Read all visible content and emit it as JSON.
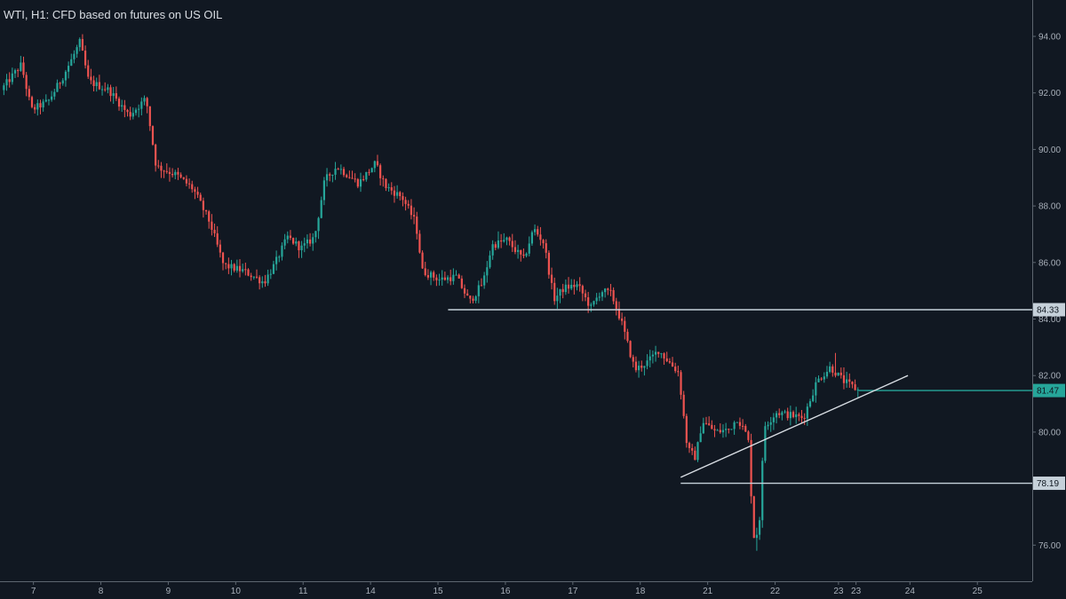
{
  "chart_data": {
    "type": "candlestick",
    "title": "WTI, H1: CFD based on futures on US OIL",
    "ylim": [
      74.8,
      94.8
    ],
    "xlim": [
      0,
      23.2
    ],
    "grid": false,
    "y_ticks": [
      "94.00",
      "92.00",
      "90.00",
      "88.00",
      "86.00",
      "84.00",
      "82.00",
      "80.00",
      "76.00"
    ],
    "y_tick_values": [
      94,
      92,
      90,
      88,
      86,
      84,
      82,
      80,
      76
    ],
    "x_ticks": [
      {
        "label": "7",
        "t": 0.48
      },
      {
        "label": "8",
        "t": 1.48
      },
      {
        "label": "9",
        "t": 2.48
      },
      {
        "label": "10",
        "t": 3.48
      },
      {
        "label": "11",
        "t": 4.48
      },
      {
        "label": "14",
        "t": 5.48
      },
      {
        "label": "15",
        "t": 6.48
      },
      {
        "label": "16",
        "t": 7.48
      },
      {
        "label": "17",
        "t": 8.48
      },
      {
        "label": "18",
        "t": 9.48
      },
      {
        "label": "21",
        "t": 10.48
      },
      {
        "label": "22",
        "t": 11.48
      },
      {
        "label": "23",
        "t": 12.42
      },
      {
        "label": "23",
        "t": 12.68
      },
      {
        "label": "24",
        "t": 13.48
      },
      {
        "label": "25",
        "t": 14.48
      }
    ],
    "price_path": [
      [
        0.0,
        92.1
      ],
      [
        0.3,
        93.0
      ],
      [
        0.45,
        91.4
      ],
      [
        0.7,
        91.7
      ],
      [
        0.9,
        92.5
      ],
      [
        1.05,
        93.2
      ],
      [
        1.17,
        93.8
      ],
      [
        1.3,
        92.4
      ],
      [
        1.6,
        92.1
      ],
      [
        1.9,
        91.2
      ],
      [
        2.15,
        91.8
      ],
      [
        2.3,
        89.4
      ],
      [
        2.6,
        89.1
      ],
      [
        2.85,
        88.6
      ],
      [
        3.1,
        87.4
      ],
      [
        3.3,
        85.9
      ],
      [
        3.6,
        85.7
      ],
      [
        3.9,
        85.3
      ],
      [
        4.05,
        85.9
      ],
      [
        4.25,
        86.9
      ],
      [
        4.45,
        86.5
      ],
      [
        4.65,
        86.9
      ],
      [
        4.8,
        88.9
      ],
      [
        4.98,
        89.4
      ],
      [
        5.3,
        88.8
      ],
      [
        5.55,
        89.5
      ],
      [
        5.7,
        88.7
      ],
      [
        5.95,
        88.3
      ],
      [
        6.15,
        87.4
      ],
      [
        6.25,
        85.7
      ],
      [
        6.5,
        85.4
      ],
      [
        6.75,
        85.5
      ],
      [
        6.95,
        84.6
      ],
      [
        7.15,
        85.3
      ],
      [
        7.28,
        86.6
      ],
      [
        7.5,
        86.8
      ],
      [
        7.75,
        86.1
      ],
      [
        7.9,
        87.2
      ],
      [
        8.05,
        86.7
      ],
      [
        8.2,
        84.7
      ],
      [
        8.35,
        85.1
      ],
      [
        8.55,
        85.2
      ],
      [
        8.75,
        84.4
      ],
      [
        8.9,
        85.0
      ],
      [
        9.05,
        84.9
      ],
      [
        9.2,
        83.9
      ],
      [
        9.4,
        82.2
      ],
      [
        9.6,
        82.5
      ],
      [
        9.75,
        82.9
      ],
      [
        10.05,
        82.1
      ],
      [
        10.18,
        79.4
      ],
      [
        10.3,
        79.1
      ],
      [
        10.4,
        80.4
      ],
      [
        10.6,
        80.0
      ],
      [
        10.8,
        80.1
      ],
      [
        10.92,
        80.5
      ],
      [
        11.08,
        79.8
      ],
      [
        11.16,
        76.3
      ],
      [
        11.24,
        76.5
      ],
      [
        11.32,
        80.2
      ],
      [
        11.5,
        80.7
      ],
      [
        11.7,
        80.6
      ],
      [
        11.9,
        80.5
      ],
      [
        12.1,
        81.8
      ],
      [
        12.3,
        82.3
      ],
      [
        12.5,
        81.8
      ],
      [
        12.72,
        81.47
      ]
    ],
    "spikes": [
      {
        "t": 1.2,
        "high": 94.0
      },
      {
        "t": 7.38,
        "high": 87.1
      },
      {
        "t": 11.2,
        "low": 75.8
      },
      {
        "t": 12.38,
        "high": 82.8
      }
    ],
    "lines": [
      {
        "name": "resistance",
        "y": 84.33,
        "t_start": 6.63,
        "label": "84.33",
        "color": "#c6d1da",
        "marker": true
      },
      {
        "name": "current-price",
        "y": 81.47,
        "t_start": 12.72,
        "label": "81.47",
        "color": "#26a69a",
        "marker": true
      },
      {
        "name": "support",
        "y": 78.19,
        "t_start": 10.08,
        "label": "78.19",
        "color": "#c6d1da",
        "marker": true
      }
    ],
    "trendline": {
      "t1": 10.08,
      "y1": 78.4,
      "t2": 13.45,
      "y2": 82.0,
      "color": "#d8dde3"
    },
    "colors": {
      "background": "#111822",
      "up": "#26a69a",
      "down": "#ef5350",
      "axis": "#5d6670",
      "text": "#a9b0ba"
    }
  }
}
